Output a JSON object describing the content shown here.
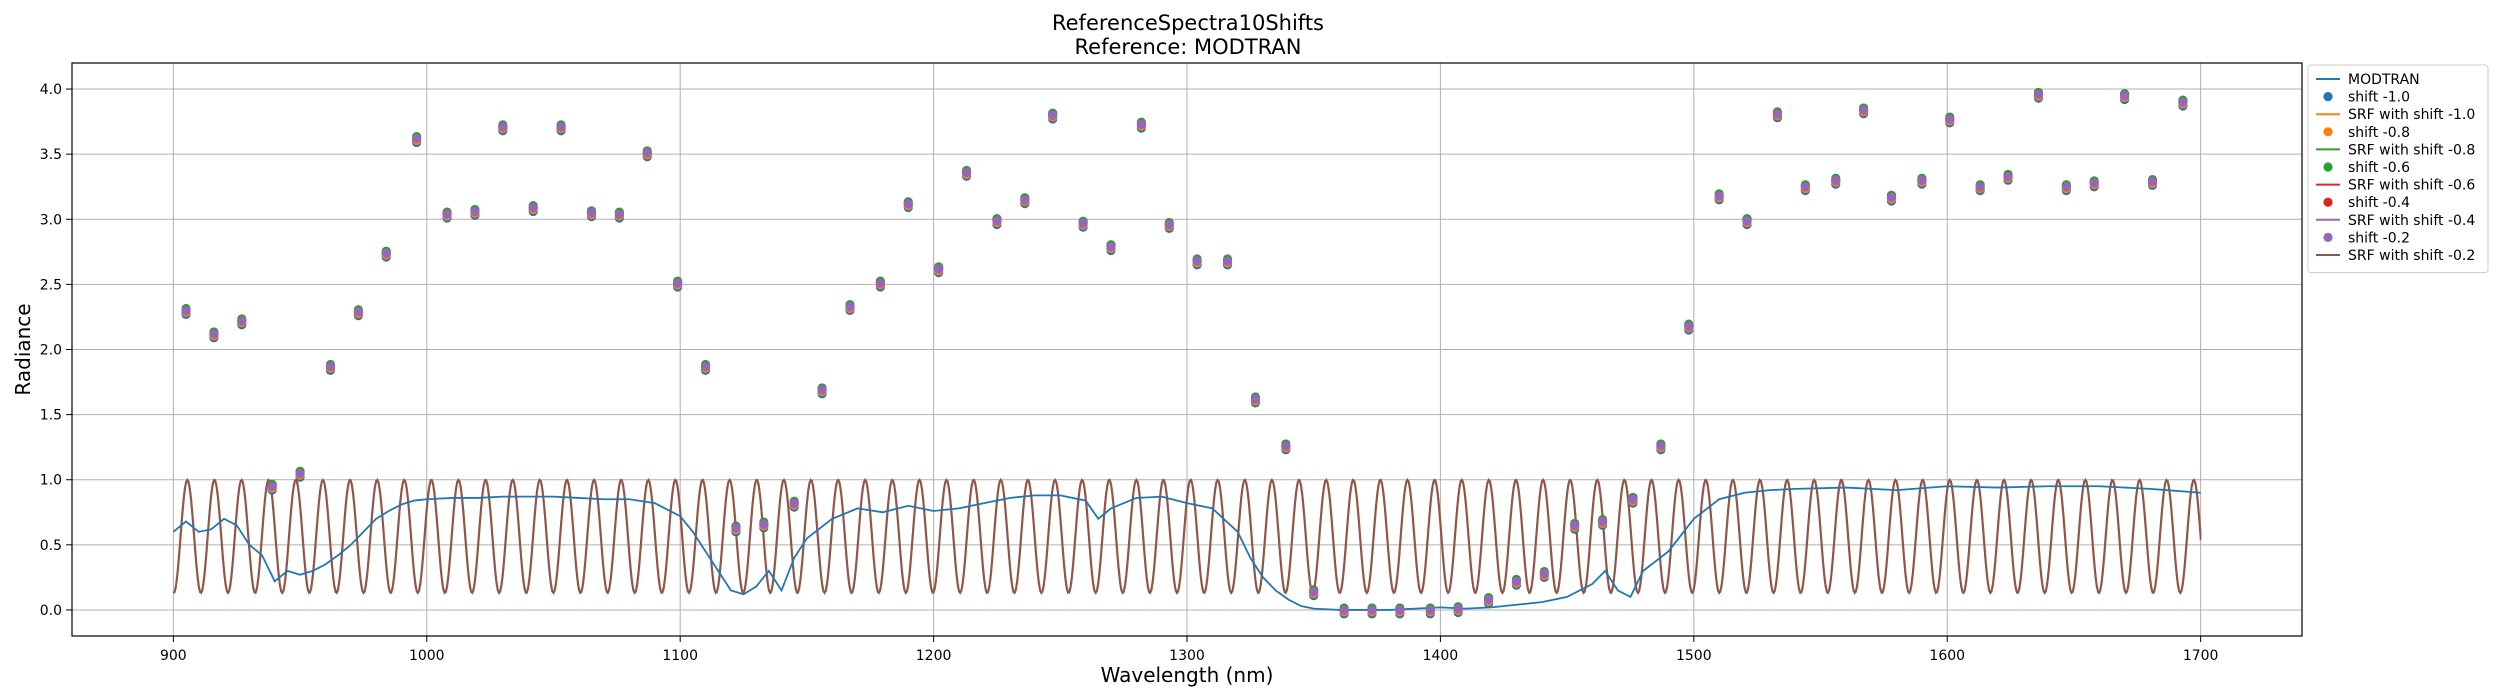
{
  "chart_data": {
    "type": "line",
    "title": "ReferenceSpectra10Shifts",
    "subtitle": "Reference: MODTRAN",
    "xlabel": "Wavelength (nm)",
    "ylabel": "Radiance",
    "xlim": [
      860,
      1740
    ],
    "ylim": [
      -0.2,
      4.2
    ],
    "xticks": [
      900,
      1000,
      1100,
      1200,
      1300,
      1400,
      1500,
      1600,
      1700
    ],
    "yticks": [
      0.0,
      0.5,
      1.0,
      1.5,
      2.0,
      2.5,
      3.0,
      3.5,
      4.0
    ],
    "grid": true,
    "legend_position": "outside-right",
    "reference": {
      "name": "MODTRAN",
      "color": "#1f77b4",
      "x": [
        900,
        905,
        910,
        915,
        920,
        925,
        930,
        935,
        940,
        945,
        950,
        955,
        960,
        965,
        970,
        975,
        980,
        985,
        990,
        995,
        1000,
        1010,
        1020,
        1030,
        1040,
        1050,
        1060,
        1070,
        1080,
        1090,
        1100,
        1105,
        1110,
        1115,
        1120,
        1125,
        1130,
        1135,
        1140,
        1145,
        1150,
        1160,
        1170,
        1180,
        1190,
        1200,
        1210,
        1220,
        1230,
        1240,
        1250,
        1260,
        1265,
        1270,
        1280,
        1290,
        1300,
        1310,
        1320,
        1325,
        1330,
        1335,
        1340,
        1345,
        1350,
        1360,
        1370,
        1380,
        1390,
        1400,
        1410,
        1420,
        1430,
        1440,
        1450,
        1460,
        1465,
        1470,
        1475,
        1480,
        1490,
        1500,
        1510,
        1520,
        1530,
        1540,
        1560,
        1580,
        1600,
        1620,
        1640,
        1660,
        1680,
        1700
      ],
      "y": [
        0.6,
        0.68,
        0.6,
        0.62,
        0.7,
        0.65,
        0.5,
        0.42,
        0.22,
        0.3,
        0.27,
        0.3,
        0.35,
        0.42,
        0.5,
        0.6,
        0.7,
        0.76,
        0.81,
        0.84,
        0.85,
        0.86,
        0.86,
        0.87,
        0.87,
        0.87,
        0.86,
        0.85,
        0.85,
        0.82,
        0.72,
        0.6,
        0.45,
        0.3,
        0.15,
        0.12,
        0.18,
        0.3,
        0.15,
        0.4,
        0.55,
        0.7,
        0.78,
        0.75,
        0.8,
        0.76,
        0.78,
        0.82,
        0.86,
        0.88,
        0.88,
        0.84,
        0.7,
        0.78,
        0.86,
        0.87,
        0.82,
        0.78,
        0.6,
        0.4,
        0.25,
        0.15,
        0.08,
        0.03,
        0.01,
        0.0,
        0.0,
        0.0,
        0.01,
        0.02,
        0.01,
        0.02,
        0.04,
        0.06,
        0.1,
        0.2,
        0.3,
        0.15,
        0.1,
        0.3,
        0.45,
        0.7,
        0.85,
        0.9,
        0.92,
        0.93,
        0.94,
        0.92,
        0.95,
        0.94,
        0.95,
        0.95,
        0.93,
        0.9
      ]
    },
    "srf": {
      "period": 10.7,
      "min": 0.13,
      "max": 1.0,
      "x_start": 900,
      "x_end": 1700
    },
    "scatter_x": [
      905,
      916,
      927,
      939,
      950,
      962,
      973,
      984,
      996,
      1008,
      1019,
      1030,
      1042,
      1053,
      1065,
      1076,
      1087,
      1099,
      1110,
      1122,
      1133,
      1145,
      1156,
      1167,
      1179,
      1190,
      1202,
      1213,
      1225,
      1236,
      1247,
      1259,
      1270,
      1282,
      1293,
      1304,
      1316,
      1327,
      1339,
      1350,
      1362,
      1373,
      1384,
      1396,
      1407,
      1419,
      1430,
      1441,
      1453,
      1464,
      1476,
      1487,
      1498,
      1510,
      1521,
      1533,
      1544,
      1556,
      1567,
      1578,
      1590,
      1601,
      1613,
      1624,
      1636,
      1647,
      1658,
      1670,
      1681,
      1693
    ],
    "scatter_y": [
      2.3,
      2.12,
      2.22,
      0.95,
      1.05,
      1.87,
      2.29,
      2.74,
      3.62,
      3.04,
      3.06,
      3.71,
      3.09,
      3.71,
      3.05,
      3.04,
      3.51,
      2.51,
      1.87,
      0.63,
      0.66,
      0.82,
      1.69,
      2.33,
      2.51,
      3.12,
      2.62,
      3.36,
      2.99,
      3.15,
      3.8,
      2.97,
      2.79,
      3.73,
      2.96,
      2.68,
      2.68,
      1.62,
      1.26,
      0.14,
      0.0,
      0.0,
      0.0,
      0.0,
      0.01,
      0.08,
      0.22,
      0.28,
      0.65,
      0.68,
      0.85,
      1.26,
      2.18,
      3.18,
      2.99,
      3.81,
      3.25,
      3.3,
      3.84,
      3.17,
      3.3,
      3.77,
      3.25,
      3.33,
      3.96,
      3.25,
      3.28,
      3.95,
      3.29,
      3.9
    ],
    "series": [
      {
        "name": "shift -1.0",
        "kind": "scatter",
        "color": "#1f77b4",
        "offset": -0.03
      },
      {
        "name": "SRF with shift -1.0",
        "kind": "srf",
        "color": "#ff7f0e",
        "shift": -1.0
      },
      {
        "name": "shift -0.8",
        "kind": "scatter",
        "color": "#ff7f0e",
        "offset": -0.015
      },
      {
        "name": "SRF with shift -0.8",
        "kind": "srf",
        "color": "#2ca02c",
        "shift": -0.8
      },
      {
        "name": "shift -0.6",
        "kind": "scatter",
        "color": "#2ca02c",
        "offset": 0.015
      },
      {
        "name": "SRF with shift -0.6",
        "kind": "srf",
        "color": "#d62728",
        "shift": -0.6
      },
      {
        "name": "shift -0.4",
        "kind": "scatter",
        "color": "#d62728",
        "offset": 0.0
      },
      {
        "name": "SRF with shift -0.4",
        "kind": "srf",
        "color": "#9467bd",
        "shift": -0.4
      },
      {
        "name": "shift -0.2",
        "kind": "scatter",
        "color": "#9467bd",
        "offset": 0.0
      },
      {
        "name": "SRF with shift -0.2",
        "kind": "srf",
        "color": "#8c564b",
        "shift": -0.2
      }
    ]
  }
}
